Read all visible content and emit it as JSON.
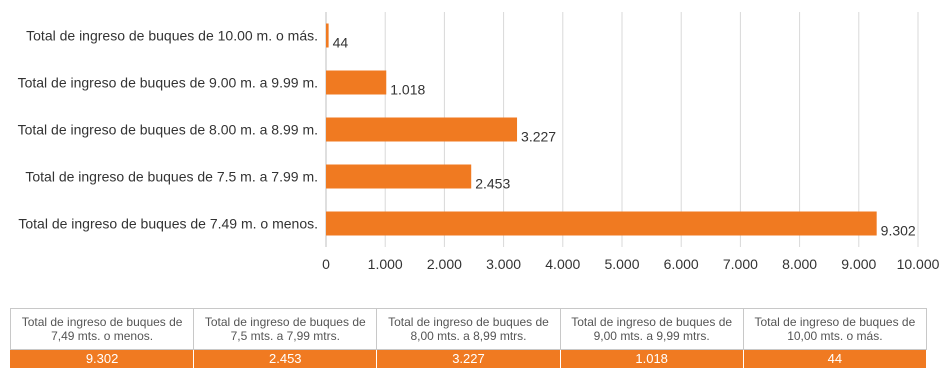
{
  "chart_data": {
    "type": "bar",
    "orientation": "horizontal",
    "categories": [
      "Total de ingreso de buques de 10.00 m. o más.",
      "Total de ingreso de buques de 9.00 m. a 9.99 m.",
      "Total de ingreso de buques de 8.00 m. a 8.99 m.",
      "Total de ingreso de buques de 7.5 m. a 7.99 m.",
      "Total de ingreso de buques de 7.49 m. o menos."
    ],
    "values": [
      44,
      1018,
      3227,
      2453,
      9302
    ],
    "value_labels": [
      "44",
      "1.018",
      "3.227",
      "2.453",
      "9.302"
    ],
    "xlim": [
      0,
      10000
    ],
    "x_ticks": [
      "0",
      "1.000",
      "2.000",
      "3.000",
      "4.000",
      "5.000",
      "6.000",
      "7.000",
      "8.000",
      "9.000",
      "10.000"
    ],
    "grid": "vertical",
    "bar_color": "#f07a21"
  },
  "table": {
    "headers": [
      "Total de ingreso de buques de 7,49 mts. o menos.",
      "Total de ingreso de buques de 7,5 mts. a 7,99 mtrs.",
      "Total de ingreso de buques de 8,00 mts. a 8,99 mtrs.",
      "Total de ingreso de buques de 9,00 mts. a 9,99 mtrs.",
      "Total de ingreso de buques de 10,00 mts. o más."
    ],
    "values": [
      "9.302",
      "2.453",
      "3.227",
      "1.018",
      "44"
    ]
  }
}
